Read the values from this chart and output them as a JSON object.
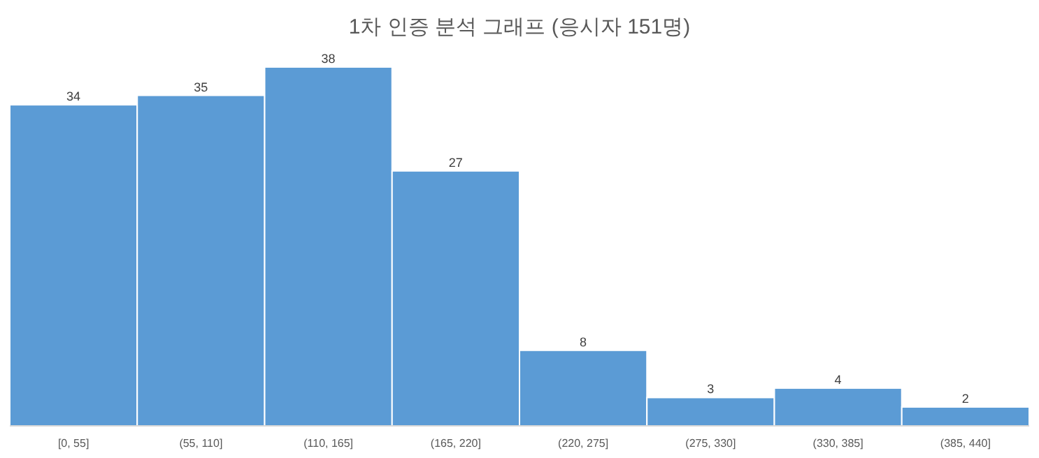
{
  "chart_data": {
    "type": "bar",
    "title": "1차 인증 분석 그래프 (응시자 151명)",
    "categories": [
      "[0, 55]",
      "(55, 110]",
      "(110, 165]",
      "(165, 220]",
      "(220, 275]",
      "(275, 330]",
      "(330, 385]",
      "(385, 440]"
    ],
    "values": [
      34,
      35,
      38,
      27,
      8,
      3,
      4,
      2
    ],
    "color": "#5b9bd5",
    "data_labels": true
  }
}
